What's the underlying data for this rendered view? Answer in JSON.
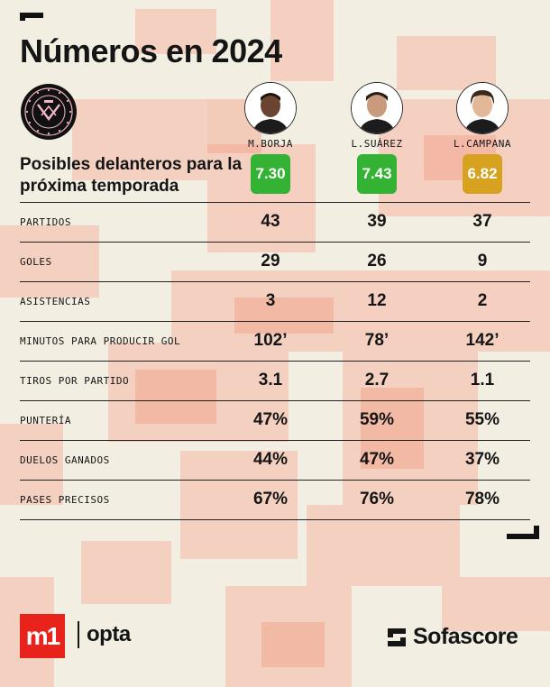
{
  "title": "Números en 2024",
  "subtitle": "Posibles delanteros para la próxima temporada",
  "club_logo": {
    "text": "MIAMI · CLUB INTERNACIONAL DE FÚTBOL · MMXX",
    "colors": {
      "pink": "#f2b7c7",
      "black": "#111111"
    }
  },
  "players": [
    {
      "name": "M.BORJA",
      "rating": "7.30",
      "rating_color": "#34b233",
      "avatar_icon": "player-photo"
    },
    {
      "name": "L.SUÁREZ",
      "rating": "7.43",
      "rating_color": "#34b233",
      "avatar_icon": "player-photo"
    },
    {
      "name": "L.CAMPANA",
      "rating": "6.82",
      "rating_color": "#d6a21f",
      "avatar_icon": "player-photo"
    }
  ],
  "stats": [
    {
      "label": "PARTIDOS",
      "values": [
        "43",
        "39",
        "37"
      ]
    },
    {
      "label": "GOLES",
      "values": [
        "29",
        "26",
        "9"
      ]
    },
    {
      "label": "ASISTENCIAS",
      "values": [
        "3",
        "12",
        "2"
      ]
    },
    {
      "label": "MINUTOS PARA PRODUCIR GOL",
      "values": [
        "102’",
        "78’",
        "142’"
      ]
    },
    {
      "label": "TIROS POR PARTIDO",
      "values": [
        "3.1",
        "2.7",
        "1.1"
      ]
    },
    {
      "label": "PUNTERÍA",
      "values": [
        "47%",
        "59%",
        "55%"
      ]
    },
    {
      "label": "DUELOS GANADOS",
      "values": [
        "44%",
        "47%",
        "37%"
      ]
    },
    {
      "label": "PASES PRECISOS",
      "values": [
        "67%",
        "76%",
        "78%"
      ]
    }
  ],
  "footer": {
    "m1": "m1",
    "opta": "opta",
    "sofascore": "Sofascore"
  },
  "colors": {
    "background": "#f3eee2",
    "accent_salmon": "#f4a892",
    "m1_red": "#e8231c"
  }
}
